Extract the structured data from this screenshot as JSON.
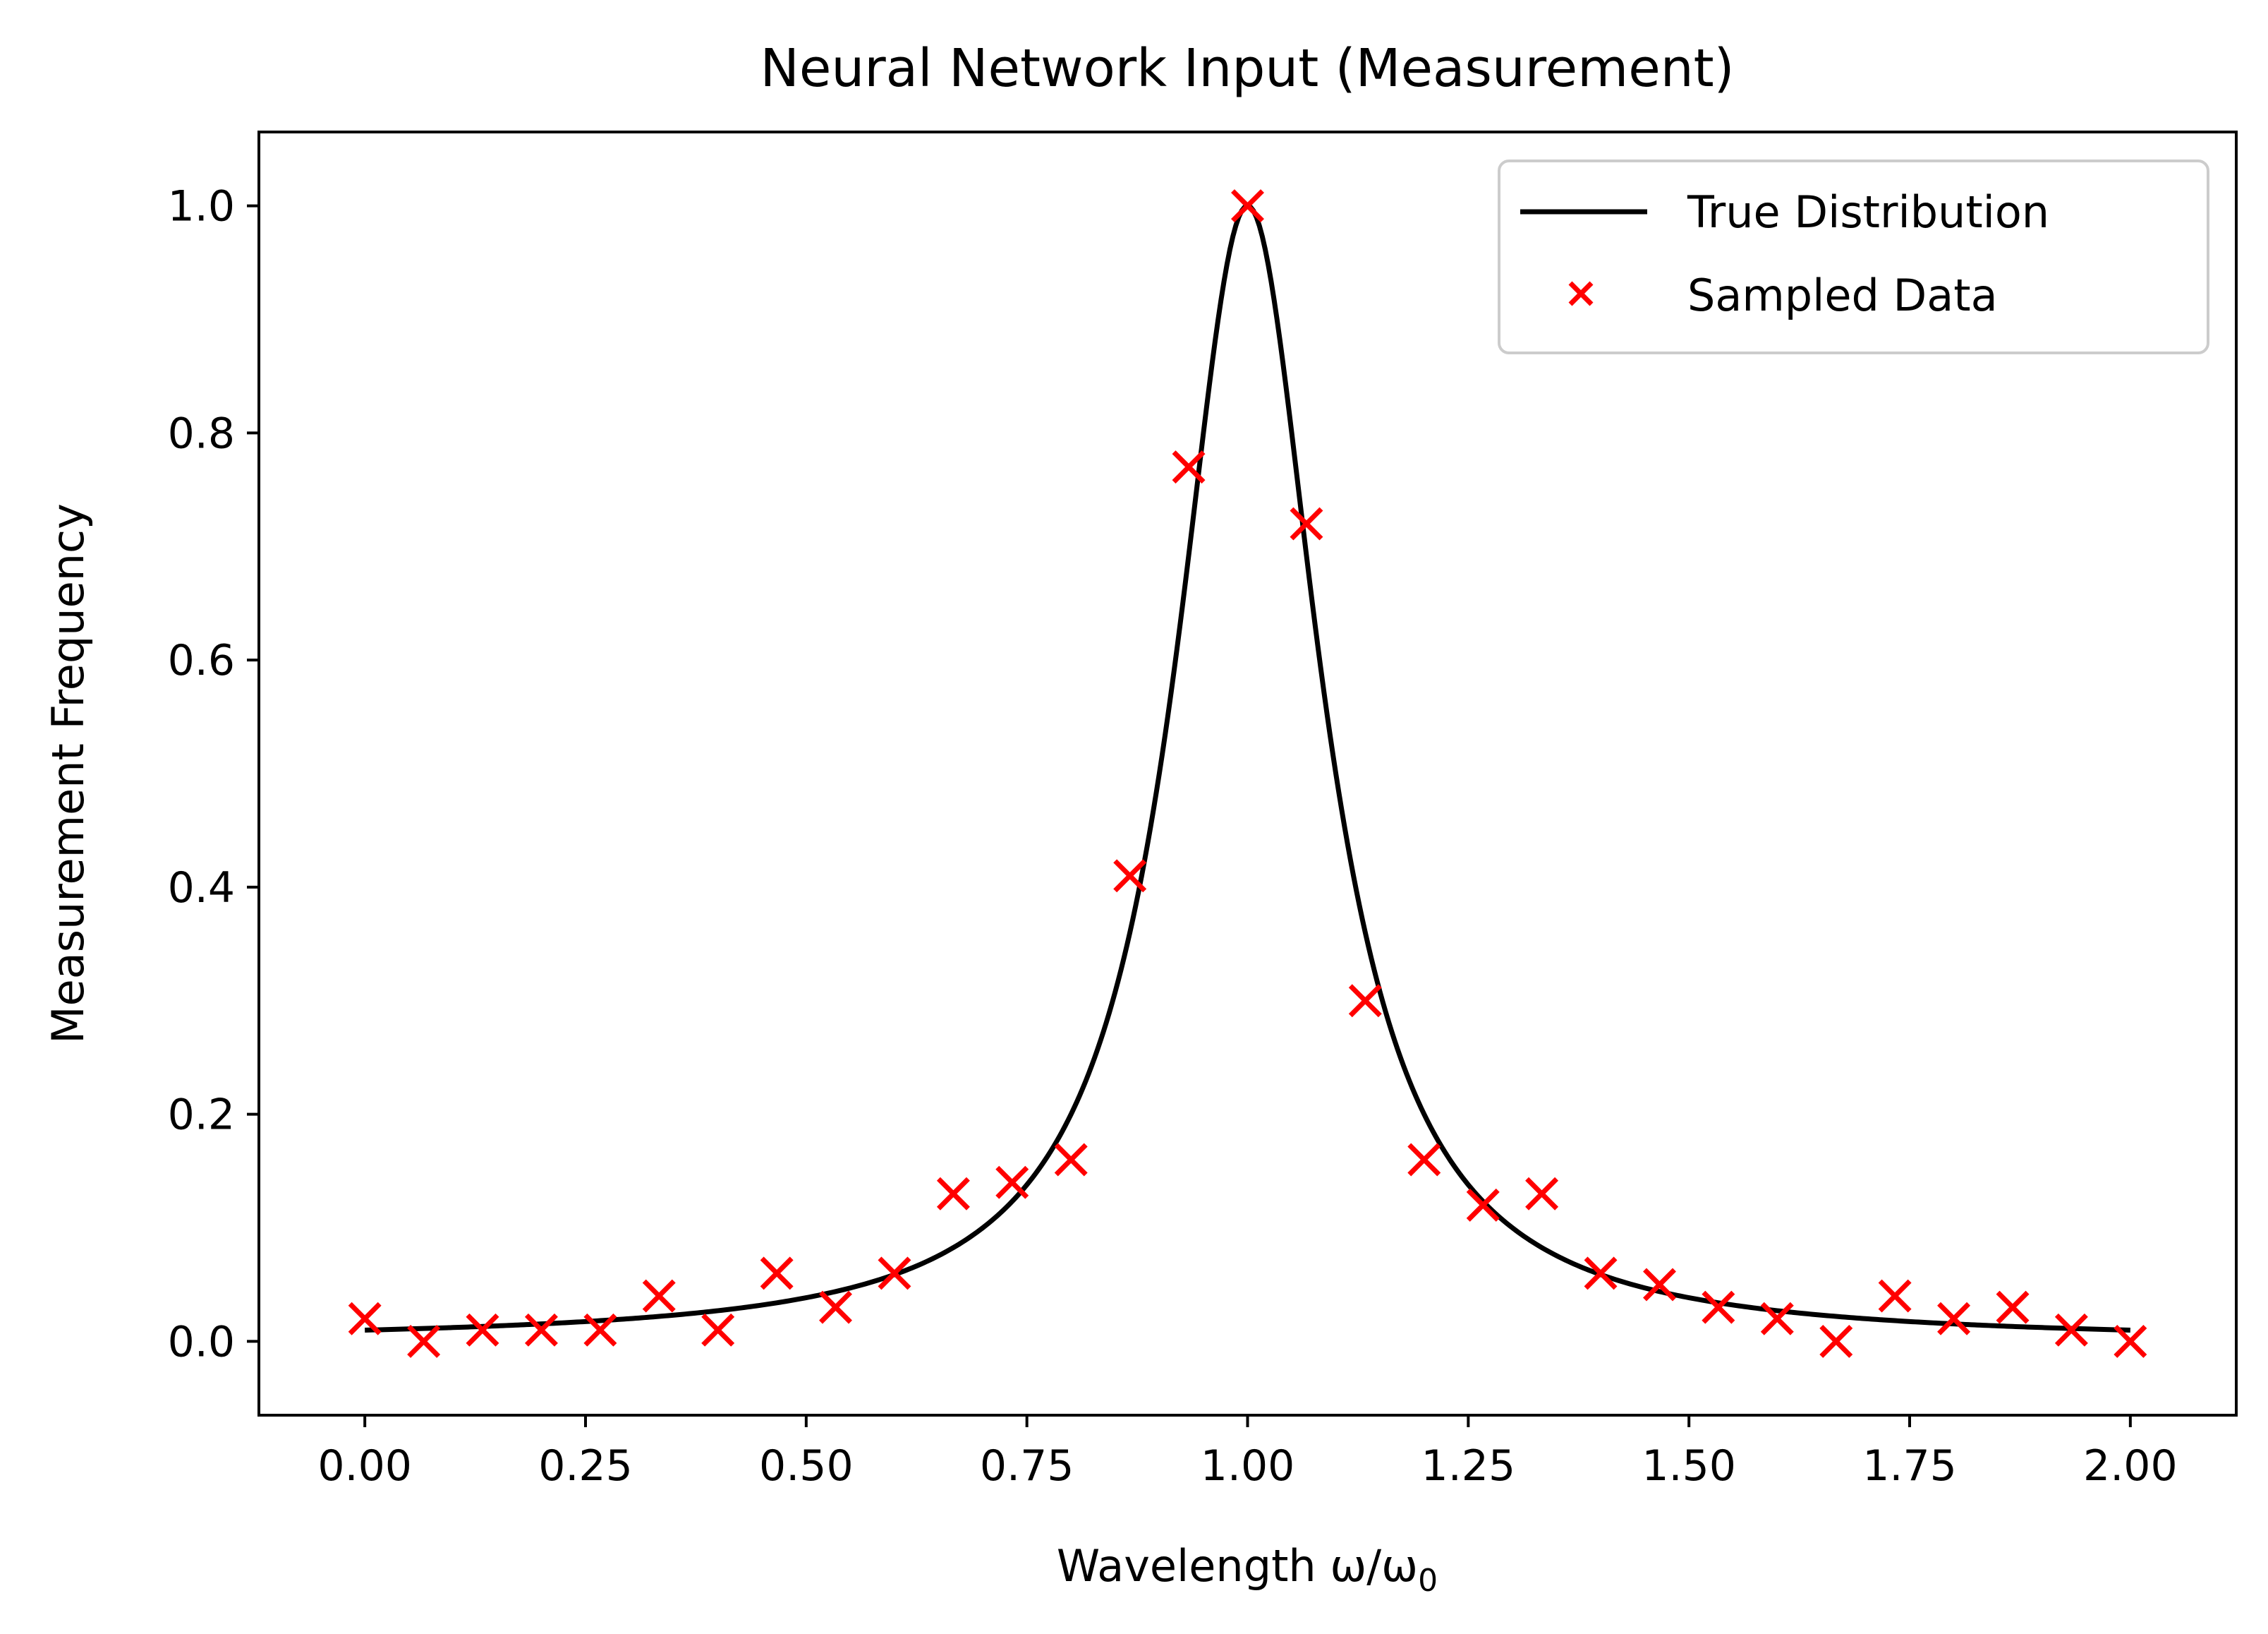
{
  "chart_data": {
    "type": "scatter",
    "title": "Neural Network Input (Measurement)",
    "xlabel": "Wavelength ω/ω",
    "xlabel_subscript": "0",
    "ylabel": "Measurement Frequency",
    "xlim": [
      -0.12,
      2.12
    ],
    "ylim": [
      -0.065,
      1.065
    ],
    "xticks": [
      0.0,
      0.25,
      0.5,
      0.75,
      1.0,
      1.25,
      1.5,
      1.75,
      2.0
    ],
    "xtick_labels": [
      "0.00",
      "0.25",
      "0.50",
      "0.75",
      "1.00",
      "1.25",
      "1.50",
      "1.75",
      "2.00"
    ],
    "yticks": [
      0.0,
      0.2,
      0.4,
      0.6,
      0.8,
      1.0
    ],
    "ytick_labels": [
      "0.0",
      "0.2",
      "0.4",
      "0.6",
      "0.8",
      "1.0"
    ],
    "grid": false,
    "legend_position": "top-right",
    "series": [
      {
        "name": "True Distribution",
        "kind": "line",
        "color": "#000000",
        "function": "lorentzian",
        "center": 1.0,
        "half_width": 0.1,
        "x_range": [
          0.0,
          2.0
        ]
      },
      {
        "name": "Sampled Data",
        "kind": "scatter",
        "marker": "x",
        "color": "#ff0000",
        "x": [
          0.0,
          0.0667,
          0.1333,
          0.2,
          0.2667,
          0.3333,
          0.4,
          0.4667,
          0.5333,
          0.6,
          0.6667,
          0.7333,
          0.8,
          0.8667,
          0.9333,
          1.0,
          1.0667,
          1.1333,
          1.2,
          1.2667,
          1.3333,
          1.4,
          1.4667,
          1.5333,
          1.6,
          1.6667,
          1.7333,
          1.8,
          1.8667,
          1.9333,
          2.0
        ],
        "y": [
          0.02,
          0.0,
          0.01,
          0.01,
          0.01,
          0.04,
          0.01,
          0.06,
          0.03,
          0.06,
          0.13,
          0.14,
          0.16,
          0.41,
          0.77,
          1.0,
          0.72,
          0.3,
          0.16,
          0.12,
          0.13,
          0.06,
          0.05,
          0.03,
          0.02,
          0.0,
          0.04,
          0.02,
          0.03,
          0.01,
          0.0
        ]
      }
    ]
  }
}
